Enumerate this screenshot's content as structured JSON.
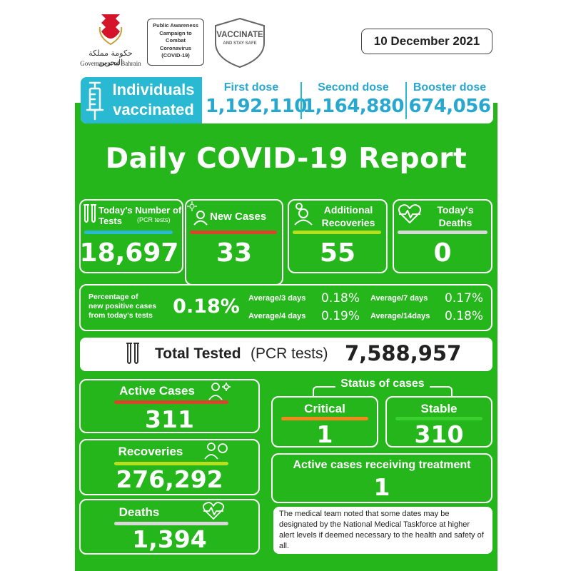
{
  "header": {
    "gov_arabic": "حكومة مملكة البحرين",
    "gov_english": "Government of Bahrain",
    "campaign": "Public Awareness Campaign to Combat Coronavirus (COVID-19)",
    "vaccinate_title": "VACCINATE",
    "vaccinate_sub": "AND STAY SAFE",
    "date": "10 December 2021"
  },
  "vaccination": {
    "title_line1": "Individuals",
    "title_line2": "vaccinated",
    "first_dose_label": "First dose",
    "first_dose_value": "1,192,110",
    "second_dose_label": "Second dose",
    "second_dose_value": "1,164,880",
    "booster_dose_label": "Booster dose",
    "booster_dose_value": "674,056"
  },
  "report_title": "Daily COVID-19 Report",
  "today": {
    "tests_label": "Today's Number of Tests",
    "tests_sub": "(PCR tests)",
    "tests_value": "18,697",
    "new_cases_label": "New Cases",
    "new_cases_value": "33",
    "recoveries_label_1": "Additional",
    "recoveries_label_2": "Recoveries",
    "recoveries_value": "55",
    "deaths_label_1": "Today's",
    "deaths_label_2": "Deaths",
    "deaths_value": "0"
  },
  "percentages": {
    "label_1": "Percentage of",
    "label_2": "new positive cases",
    "label_3": "from today's tests",
    "value": "0.18%",
    "avg3_label": "Average/3 days",
    "avg3_value": "0.18%",
    "avg4_label": "Average/4 days",
    "avg4_value": "0.19%",
    "avg7_label": "Average/7 days",
    "avg7_value": "0.17%",
    "avg14_label": "Average/14days",
    "avg14_value": "0.18%"
  },
  "total_tested": {
    "label_bold": "Total Tested",
    "label_normal": "(PCR tests)",
    "value": "7,588,957"
  },
  "totals": {
    "active_label": "Active Cases",
    "active_value": "311",
    "recoveries_label": "Recoveries",
    "recoveries_value": "276,292",
    "deaths_label": "Deaths",
    "deaths_value": "1,394"
  },
  "status": {
    "title": "Status of cases",
    "critical_label": "Critical",
    "critical_value": "1",
    "stable_label": "Stable",
    "stable_value": "310",
    "treatment_label": "Active cases receiving treatment",
    "treatment_value": "1"
  },
  "note": "The medical team noted that some dates may be designated by the National Medical Taskforce at higher alert levels if deemed necessary to the health and safety of all.",
  "colors": {
    "green": "#25b61c",
    "teal": "#29b9d3",
    "red_bar": "#d8452b",
    "lime_bar": "#b6e01e",
    "orange_bar": "#f08a1f"
  }
}
